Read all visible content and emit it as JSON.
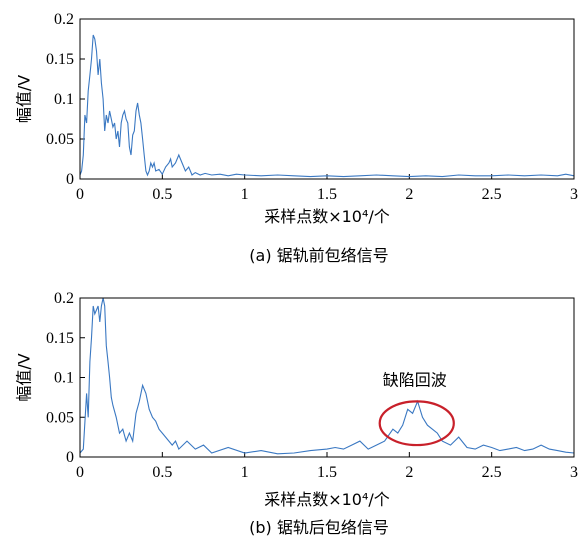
{
  "chart_data": [
    {
      "type": "line",
      "caption": "(a) 锯轨前包络信号",
      "xlabel": "采样点数×10⁴/个",
      "ylabel": "幅值/V",
      "xlim": [
        0,
        3
      ],
      "ylim": [
        0,
        0.2
      ],
      "x_ticks": [
        "0",
        "0.5",
        "1",
        "1.5",
        "2",
        "2.5",
        "3"
      ],
      "y_ticks": [
        "0",
        "0.05",
        "0.1",
        "0.15",
        "0.2"
      ],
      "series": [
        {
          "x": [
            0,
            0.01,
            0.02,
            0.03,
            0.04,
            0.05,
            0.06,
            0.07,
            0.08,
            0.09,
            0.1,
            0.11,
            0.12,
            0.13,
            0.14,
            0.15,
            0.16,
            0.17,
            0.18,
            0.19,
            0.2,
            0.21,
            0.22,
            0.23,
            0.24,
            0.25,
            0.26,
            0.27,
            0.28,
            0.29,
            0.3,
            0.31,
            0.32,
            0.33,
            0.34,
            0.35,
            0.36,
            0.37,
            0.38,
            0.39,
            0.4,
            0.41,
            0.42,
            0.43,
            0.44,
            0.45,
            0.46,
            0.48,
            0.5,
            0.52,
            0.54,
            0.55,
            0.56,
            0.58,
            0.6,
            0.62,
            0.64,
            0.66,
            0.68,
            0.7,
            0.73,
            0.76,
            0.8,
            0.85,
            0.9,
            0.95,
            1.0,
            1.1,
            1.2,
            1.3,
            1.4,
            1.5,
            1.6,
            1.7,
            1.8,
            1.9,
            2.0,
            2.1,
            2.2,
            2.3,
            2.4,
            2.5,
            2.6,
            2.7,
            2.8,
            2.9,
            2.95,
            3.0
          ],
          "y": [
            0.005,
            0.01,
            0.03,
            0.08,
            0.07,
            0.11,
            0.13,
            0.15,
            0.18,
            0.175,
            0.16,
            0.13,
            0.15,
            0.12,
            0.1,
            0.06,
            0.08,
            0.07,
            0.085,
            0.075,
            0.065,
            0.07,
            0.05,
            0.06,
            0.04,
            0.07,
            0.08,
            0.085,
            0.075,
            0.07,
            0.04,
            0.03,
            0.055,
            0.06,
            0.085,
            0.095,
            0.08,
            0.07,
            0.05,
            0.03,
            0.01,
            0.005,
            0.01,
            0.02,
            0.015,
            0.02,
            0.01,
            0.012,
            0.006,
            0.015,
            0.02,
            0.025,
            0.015,
            0.02,
            0.03,
            0.02,
            0.01,
            0.015,
            0.005,
            0.008,
            0.005,
            0.007,
            0.005,
            0.006,
            0.004,
            0.006,
            0.005,
            0.004,
            0.005,
            0.004,
            0.003,
            0.004,
            0.003,
            0.004,
            0.005,
            0.004,
            0.003,
            0.004,
            0.003,
            0.005,
            0.004,
            0.004,
            0.005,
            0.004,
            0.005,
            0.004,
            0.006,
            0.004
          ]
        }
      ]
    },
    {
      "type": "line",
      "caption": "(b) 锯轨后包络信号",
      "xlabel": "采样点数×10⁴/个",
      "ylabel": "幅值/V",
      "xlim": [
        0,
        3
      ],
      "ylim": [
        0,
        0.2
      ],
      "x_ticks": [
        "0",
        "0.5",
        "1",
        "1.5",
        "2",
        "2.5",
        "3"
      ],
      "y_ticks": [
        "0",
        "0.05",
        "0.1",
        "0.15",
        "0.2"
      ],
      "annotation": {
        "text": "缺陷回波",
        "x_range": [
          1.82,
          2.27
        ],
        "y_range": [
          0.015,
          0.07
        ]
      },
      "series": [
        {
          "x": [
            0,
            0.02,
            0.04,
            0.05,
            0.06,
            0.07,
            0.08,
            0.09,
            0.1,
            0.11,
            0.12,
            0.13,
            0.14,
            0.15,
            0.16,
            0.17,
            0.18,
            0.19,
            0.2,
            0.22,
            0.24,
            0.26,
            0.28,
            0.3,
            0.32,
            0.34,
            0.36,
            0.38,
            0.4,
            0.42,
            0.44,
            0.46,
            0.48,
            0.5,
            0.52,
            0.54,
            0.56,
            0.58,
            0.6,
            0.65,
            0.7,
            0.75,
            0.8,
            0.9,
            1.0,
            1.1,
            1.2,
            1.3,
            1.4,
            1.5,
            1.55,
            1.6,
            1.65,
            1.7,
            1.75,
            1.8,
            1.85,
            1.9,
            1.93,
            1.96,
            1.99,
            2.02,
            2.05,
            2.08,
            2.11,
            2.14,
            2.17,
            2.2,
            2.25,
            2.3,
            2.35,
            2.4,
            2.45,
            2.5,
            2.55,
            2.6,
            2.65,
            2.7,
            2.75,
            2.8,
            2.85,
            2.9,
            2.95,
            3.0
          ],
          "y": [
            0.005,
            0.01,
            0.08,
            0.05,
            0.12,
            0.15,
            0.19,
            0.18,
            0.185,
            0.19,
            0.17,
            0.19,
            0.2,
            0.19,
            0.14,
            0.12,
            0.1,
            0.075,
            0.065,
            0.05,
            0.03,
            0.035,
            0.02,
            0.03,
            0.02,
            0.055,
            0.07,
            0.09,
            0.08,
            0.06,
            0.05,
            0.045,
            0.035,
            0.03,
            0.025,
            0.02,
            0.015,
            0.02,
            0.01,
            0.02,
            0.01,
            0.015,
            0.005,
            0.012,
            0.005,
            0.008,
            0.004,
            0.005,
            0.008,
            0.01,
            0.012,
            0.01,
            0.015,
            0.02,
            0.01,
            0.015,
            0.02,
            0.035,
            0.03,
            0.04,
            0.06,
            0.055,
            0.07,
            0.05,
            0.04,
            0.035,
            0.03,
            0.02,
            0.015,
            0.025,
            0.012,
            0.01,
            0.015,
            0.012,
            0.008,
            0.01,
            0.012,
            0.008,
            0.01,
            0.015,
            0.01,
            0.008,
            0.006,
            0.005
          ]
        }
      ]
    }
  ],
  "colors": {
    "series": "#3a78c2",
    "annotation": "#c8202a"
  }
}
